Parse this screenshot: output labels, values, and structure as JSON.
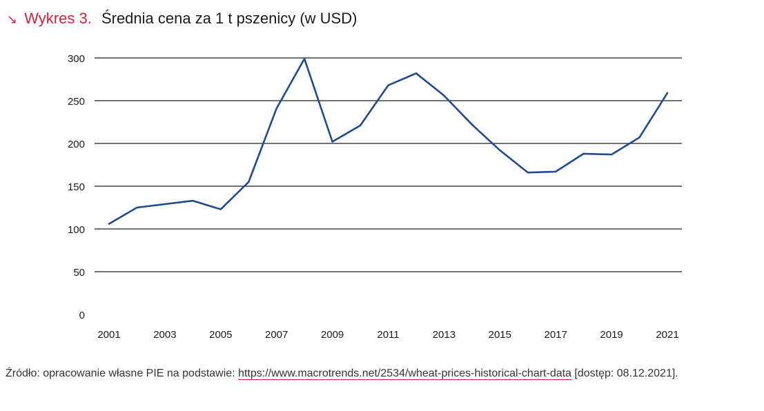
{
  "header": {
    "arrow": "↘",
    "label": "Wykres 3.",
    "title": "Średnia cena za 1 t pszenicy (w USD)"
  },
  "source": {
    "prefix": "Źródło: opracowanie własne PIE na podstawie: ",
    "link": "https://www.macrotrends.net/2534/wheat-prices-historical-chart-data",
    "suffix": " [dostęp: 08.12.2021]."
  },
  "colors": {
    "line": "#1f4a91",
    "accent": "#d4213d",
    "grid": "#1a1a1a"
  },
  "chart_data": {
    "type": "line",
    "title": "Średnia cena za 1 t pszenicy (w USD)",
    "xlabel": "",
    "ylabel": "",
    "ylim": [
      0,
      300
    ],
    "yticks": [
      0,
      50,
      100,
      150,
      200,
      250,
      300
    ],
    "xticks": [
      2001,
      2003,
      2005,
      2007,
      2009,
      2011,
      2013,
      2015,
      2017,
      2019,
      2021
    ],
    "grid": true,
    "legend": "none",
    "series": [
      {
        "x": [
          2001,
          2002,
          2003,
          2004,
          2005,
          2006,
          2007,
          2008,
          2009,
          2010,
          2011,
          2012,
          2013,
          2014,
          2015,
          2016,
          2017,
          2018,
          2019,
          2020,
          2021
        ],
        "values": [
          106,
          125,
          129,
          133,
          123,
          155,
          241,
          299,
          202,
          221,
          268,
          282,
          256,
          222,
          192,
          166,
          167,
          188,
          187,
          207,
          259
        ]
      }
    ]
  }
}
